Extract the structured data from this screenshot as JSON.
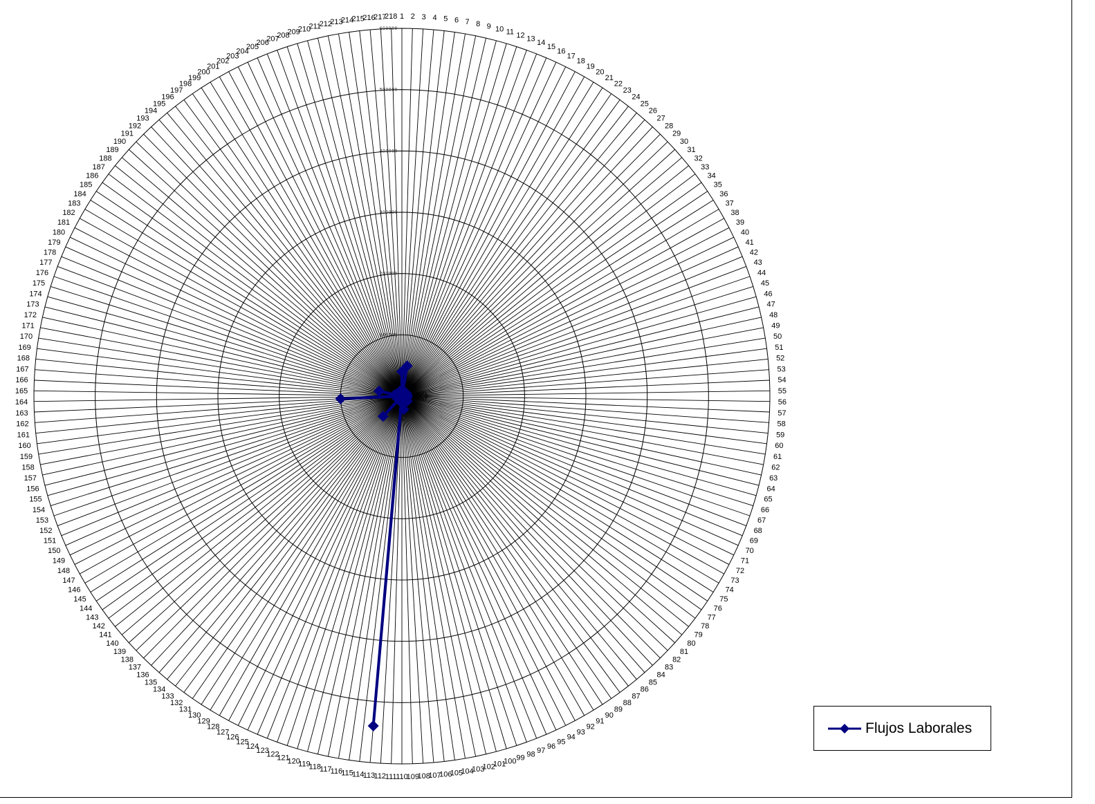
{
  "chart_data": {
    "type": "radar",
    "categories_count": 218,
    "category_labels": "1..218",
    "radial_axis": {
      "min": 0,
      "max": 600000,
      "ticks": [
        0,
        100000,
        200000,
        300000,
        400000,
        500000,
        600000
      ],
      "tick_labels": [
        "0",
        "100000",
        "200000",
        "300000",
        "400000",
        "500000",
        "600000"
      ]
    },
    "grid": true,
    "legend_position": "bottom-right",
    "series": [
      {
        "name": "Flujos Laborales",
        "color": "#000080",
        "marker": "diamond",
        "values_nonzero": {
          "1": 40000,
          "7": 50000,
          "82": 12000,
          "105": 22000,
          "113": 540000,
          "136": 45000,
          "163": 100000,
          "171": 12000,
          "172": 38000
        },
        "default_value": 8000
      }
    ]
  },
  "legend": {
    "label": "Flujos Laborales"
  }
}
